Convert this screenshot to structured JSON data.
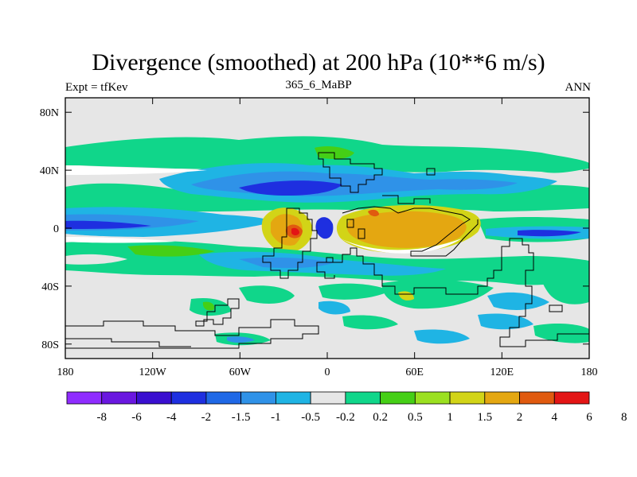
{
  "title": "Divergence (smoothed) at 200 hPa (10**6 m/s)",
  "subtitle_left": "Expt = tfKev",
  "subtitle_center": "365_6_MaBP",
  "subtitle_right": "ANN",
  "map": {
    "lon_range": [
      -180,
      180
    ],
    "lat_range": [
      -90,
      90
    ],
    "x_ticks": [
      {
        "value": -180,
        "label": "180"
      },
      {
        "value": -120,
        "label": "120W"
      },
      {
        "value": -60,
        "label": "60W"
      },
      {
        "value": 0,
        "label": "0"
      },
      {
        "value": 60,
        "label": "60E"
      },
      {
        "value": 120,
        "label": "120E"
      },
      {
        "value": 180,
        "label": "180"
      }
    ],
    "y_ticks": [
      {
        "value": 80,
        "label": "80N"
      },
      {
        "value": 40,
        "label": "40N"
      },
      {
        "value": 0,
        "label": "0"
      },
      {
        "value": -40,
        "label": "40S"
      },
      {
        "value": -80,
        "label": "80S"
      }
    ],
    "background_color": "#e6e6e6",
    "coastline_color": "#000000"
  },
  "colorbar": {
    "colors": [
      "#8f2cff",
      "#6a17e0",
      "#3a0fd0",
      "#1e2fe0",
      "#1f68e6",
      "#2f92e8",
      "#1fb4e4",
      "#e6e6e6",
      "#10d68a",
      "#45cf16",
      "#9be020",
      "#d2d417",
      "#e4a711",
      "#e05a0f",
      "#e31515"
    ],
    "labels": [
      "-8",
      "-6",
      "-4",
      "-2",
      "-1.5",
      "-1",
      "-0.5",
      "-0.2",
      "0.2",
      "0.5",
      "1",
      "1.5",
      "2",
      "4",
      "6",
      "8"
    ]
  }
}
